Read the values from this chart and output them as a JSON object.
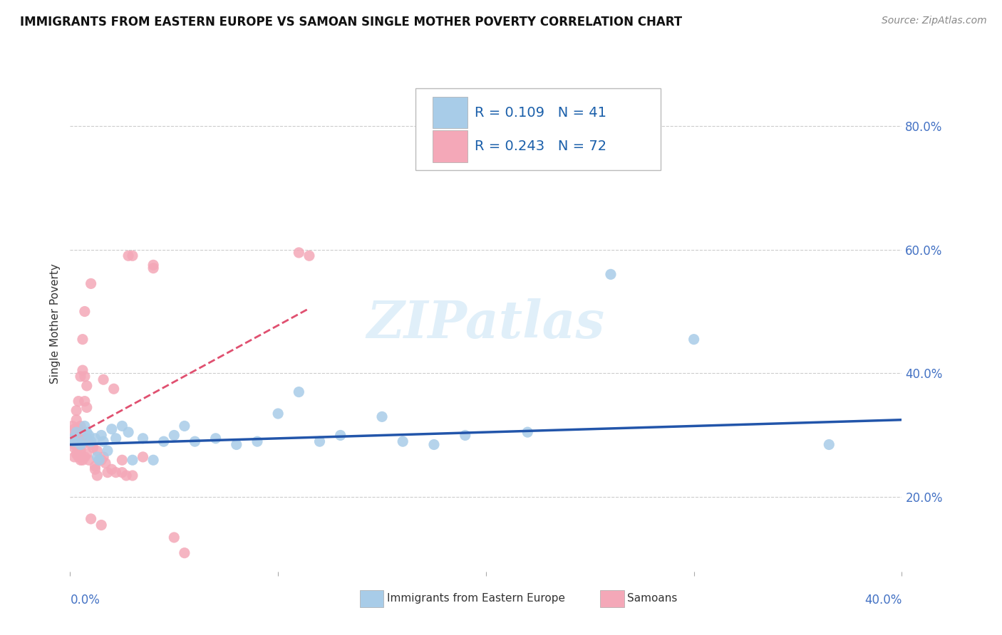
{
  "title": "IMMIGRANTS FROM EASTERN EUROPE VS SAMOAN SINGLE MOTHER POVERTY CORRELATION CHART",
  "source": "Source: ZipAtlas.com",
  "ylabel": "Single Mother Poverty",
  "xmin": 0.0,
  "xmax": 0.4,
  "ymin": 0.08,
  "ymax": 0.88,
  "watermark": "ZIPatlas",
  "legend_r1": "R = 0.109",
  "legend_n1": "N = 41",
  "legend_r2": "R = 0.243",
  "legend_n2": "N = 72",
  "blue_color": "#a8cce8",
  "pink_color": "#f4a8b8",
  "blue_line_color": "#2255aa",
  "pink_line_color": "#e05070",
  "blue_scatter": [
    [
      0.001,
      0.295
    ],
    [
      0.002,
      0.29
    ],
    [
      0.003,
      0.305
    ],
    [
      0.005,
      0.285
    ],
    [
      0.006,
      0.29
    ],
    [
      0.007,
      0.315
    ],
    [
      0.008,
      0.305
    ],
    [
      0.009,
      0.3
    ],
    [
      0.01,
      0.29
    ],
    [
      0.012,
      0.295
    ],
    [
      0.013,
      0.265
    ],
    [
      0.014,
      0.26
    ],
    [
      0.015,
      0.3
    ],
    [
      0.016,
      0.29
    ],
    [
      0.018,
      0.275
    ],
    [
      0.02,
      0.31
    ],
    [
      0.022,
      0.295
    ],
    [
      0.025,
      0.315
    ],
    [
      0.028,
      0.305
    ],
    [
      0.03,
      0.26
    ],
    [
      0.035,
      0.295
    ],
    [
      0.04,
      0.26
    ],
    [
      0.045,
      0.29
    ],
    [
      0.05,
      0.3
    ],
    [
      0.055,
      0.315
    ],
    [
      0.06,
      0.29
    ],
    [
      0.07,
      0.295
    ],
    [
      0.08,
      0.285
    ],
    [
      0.09,
      0.29
    ],
    [
      0.1,
      0.335
    ],
    [
      0.11,
      0.37
    ],
    [
      0.12,
      0.29
    ],
    [
      0.13,
      0.3
    ],
    [
      0.15,
      0.33
    ],
    [
      0.16,
      0.29
    ],
    [
      0.175,
      0.285
    ],
    [
      0.19,
      0.3
    ],
    [
      0.22,
      0.305
    ],
    [
      0.26,
      0.56
    ],
    [
      0.3,
      0.455
    ],
    [
      0.365,
      0.285
    ]
  ],
  "pink_scatter": [
    [
      0.001,
      0.29
    ],
    [
      0.001,
      0.295
    ],
    [
      0.001,
      0.315
    ],
    [
      0.002,
      0.265
    ],
    [
      0.002,
      0.28
    ],
    [
      0.002,
      0.285
    ],
    [
      0.002,
      0.3
    ],
    [
      0.002,
      0.31
    ],
    [
      0.003,
      0.27
    ],
    [
      0.003,
      0.29
    ],
    [
      0.003,
      0.295
    ],
    [
      0.003,
      0.3
    ],
    [
      0.003,
      0.325
    ],
    [
      0.003,
      0.34
    ],
    [
      0.004,
      0.265
    ],
    [
      0.004,
      0.28
    ],
    [
      0.004,
      0.29
    ],
    [
      0.004,
      0.295
    ],
    [
      0.004,
      0.31
    ],
    [
      0.004,
      0.355
    ],
    [
      0.005,
      0.26
    ],
    [
      0.005,
      0.265
    ],
    [
      0.005,
      0.275
    ],
    [
      0.005,
      0.29
    ],
    [
      0.005,
      0.315
    ],
    [
      0.005,
      0.395
    ],
    [
      0.006,
      0.26
    ],
    [
      0.006,
      0.285
    ],
    [
      0.006,
      0.29
    ],
    [
      0.006,
      0.405
    ],
    [
      0.006,
      0.455
    ],
    [
      0.007,
      0.265
    ],
    [
      0.007,
      0.295
    ],
    [
      0.007,
      0.355
    ],
    [
      0.007,
      0.395
    ],
    [
      0.007,
      0.5
    ],
    [
      0.008,
      0.27
    ],
    [
      0.008,
      0.295
    ],
    [
      0.008,
      0.345
    ],
    [
      0.008,
      0.38
    ],
    [
      0.009,
      0.26
    ],
    [
      0.01,
      0.165
    ],
    [
      0.01,
      0.285
    ],
    [
      0.01,
      0.545
    ],
    [
      0.011,
      0.28
    ],
    [
      0.012,
      0.245
    ],
    [
      0.012,
      0.25
    ],
    [
      0.013,
      0.235
    ],
    [
      0.013,
      0.275
    ],
    [
      0.014,
      0.26
    ],
    [
      0.015,
      0.155
    ],
    [
      0.015,
      0.26
    ],
    [
      0.016,
      0.265
    ],
    [
      0.016,
      0.39
    ],
    [
      0.017,
      0.255
    ],
    [
      0.018,
      0.24
    ],
    [
      0.02,
      0.245
    ],
    [
      0.021,
      0.375
    ],
    [
      0.022,
      0.24
    ],
    [
      0.025,
      0.24
    ],
    [
      0.025,
      0.26
    ],
    [
      0.027,
      0.235
    ],
    [
      0.028,
      0.59
    ],
    [
      0.03,
      0.235
    ],
    [
      0.03,
      0.59
    ],
    [
      0.035,
      0.265
    ],
    [
      0.04,
      0.57
    ],
    [
      0.04,
      0.575
    ],
    [
      0.05,
      0.135
    ],
    [
      0.055,
      0.11
    ],
    [
      0.11,
      0.595
    ],
    [
      0.115,
      0.59
    ]
  ],
  "blue_line_x": [
    0.0,
    0.4
  ],
  "blue_line_y": [
    0.285,
    0.325
  ],
  "pink_line_x": [
    0.0,
    0.115
  ],
  "pink_line_y": [
    0.295,
    0.505
  ],
  "ytick_vals": [
    0.2,
    0.4,
    0.6,
    0.8
  ],
  "ytick_labels": [
    "20.0%",
    "40.0%",
    "60.0%",
    "80.0%"
  ]
}
